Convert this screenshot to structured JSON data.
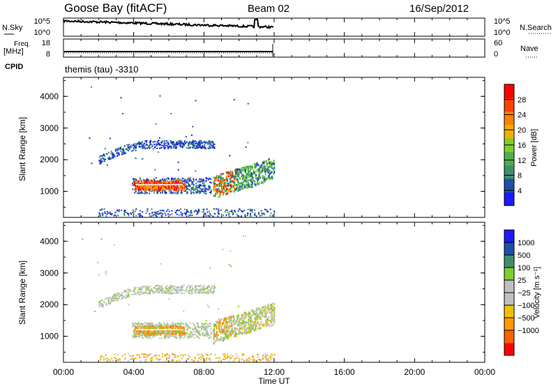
{
  "header": {
    "station": "Goose Bay (fitACF)",
    "beam": "Beam 02",
    "date": "16/Sep/2012"
  },
  "noise_panel": {
    "left_label": "N.Sky",
    "right_label": "N.Search",
    "left_ticks": [
      "10^5",
      "10^0"
    ],
    "right_ticks": [
      "10^5",
      "10^0"
    ]
  },
  "freq_panel": {
    "left_label_1": "Freq.",
    "left_label_2": "[MHz]",
    "right_label": "Nave",
    "left_ticks": [
      "18",
      "8"
    ],
    "right_ticks": [
      "60",
      "0"
    ]
  },
  "cpid": {
    "label": "CPID",
    "value": "themis (tau) -3310"
  },
  "time_axis": {
    "label": "Time UT",
    "ticks": [
      "00:00",
      "04:00",
      "08:00",
      "12:00",
      "16:00",
      "20:00",
      "00:00"
    ]
  },
  "colors": {
    "power": [
      "#1a1aff",
      "#1f4fa8",
      "#3f8f6f",
      "#4fae4f",
      "#7ccf2c",
      "#f0b000",
      "#ff8000",
      "#ff4000",
      "#ff0000"
    ],
    "velocity": [
      "#ff0000",
      "#ff6000",
      "#ff9a00",
      "#f0c000",
      "#c0c0c0",
      "#c0c0c0",
      "#7ccf2c",
      "#3f8f6f",
      "#1f4fa8",
      "#1a1aff"
    ]
  },
  "chart_data": [
    {
      "type": "heatmap",
      "title": "Power",
      "ylabel": "Slant Range [km]",
      "xlabel": "",
      "ylim": [
        180,
        4600
      ],
      "xlim": [
        0,
        24
      ],
      "yticks": [
        "1000",
        "2000",
        "3000",
        "4000"
      ],
      "colorbar": {
        "label": "Power [dB]",
        "ticks": [
          "4",
          "8",
          "12",
          "16",
          "20",
          "24",
          "28"
        ],
        "range": [
          0,
          32
        ]
      },
      "features": [
        {
          "name": "upper arc",
          "time_start": "02:00",
          "time_end": "08:30",
          "range_km": [
            2000,
            2600
          ]
        },
        {
          "name": "main band",
          "time_start": "03:50",
          "time_end": "08:30",
          "range_km": [
            1000,
            1400
          ]
        },
        {
          "name": "late cluster",
          "time_start": "08:30",
          "time_end": "12:00",
          "range_km": [
            1100,
            2200
          ]
        },
        {
          "name": "ground scatter",
          "time_start": "02:00",
          "time_end": "12:00",
          "range_km": [
            250,
            450
          ]
        }
      ]
    },
    {
      "type": "heatmap",
      "title": "Velocity",
      "ylabel": "Slant Range [km]",
      "xlabel": "Time UT",
      "ylim": [
        180,
        4600
      ],
      "xlim": [
        0,
        24
      ],
      "yticks": [
        "1000",
        "2000",
        "3000",
        "4000"
      ],
      "colorbar": {
        "label": "Velocity [m s⁻¹]",
        "ticks": [
          "1000",
          "500",
          "100",
          "25",
          "−25",
          "−100",
          "−500",
          "−1000"
        ]
      }
    }
  ]
}
